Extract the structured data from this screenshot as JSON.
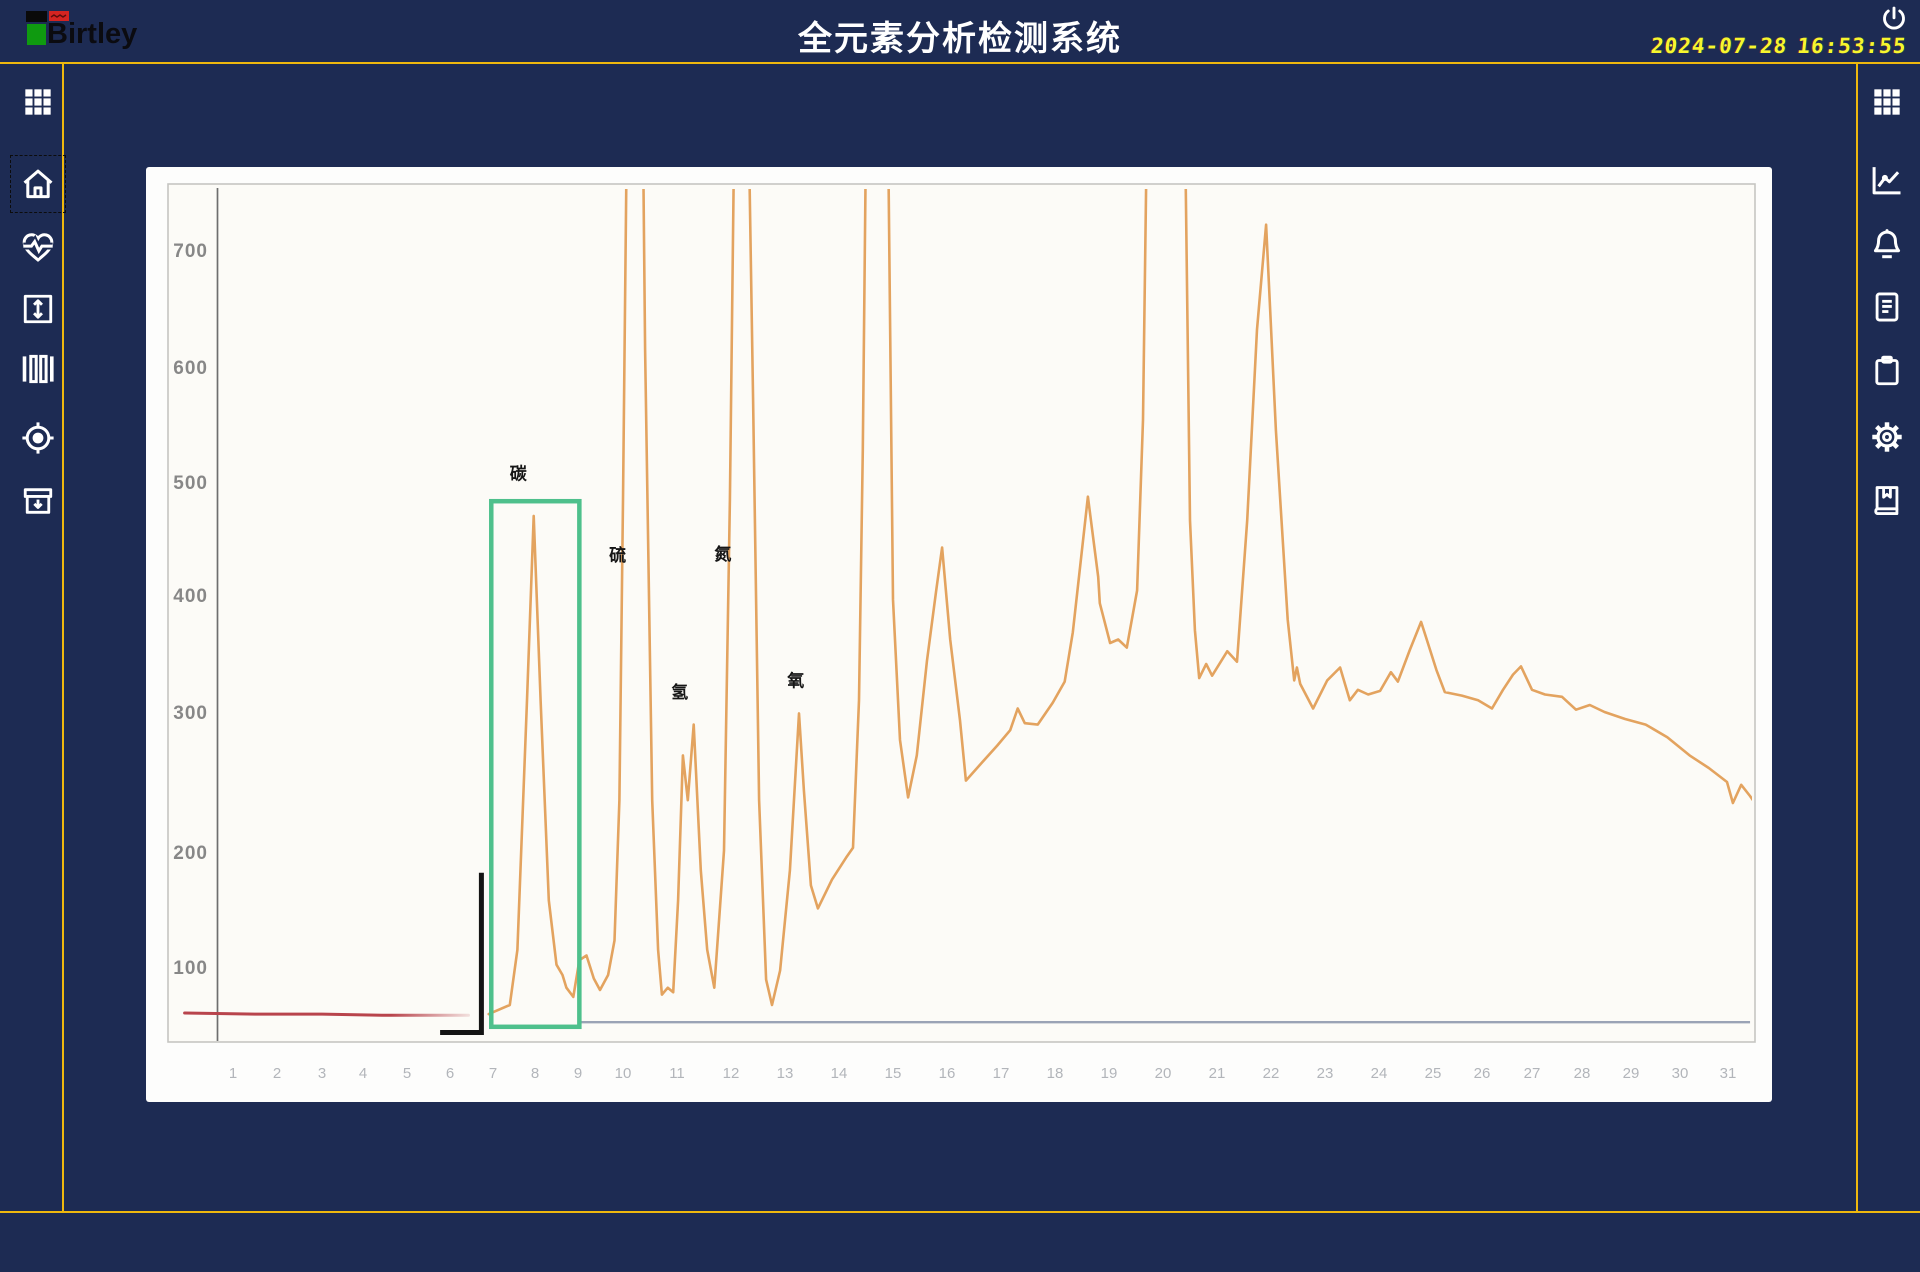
{
  "app": {
    "brand": "Birtley",
    "title": "全元素分析检测系统",
    "date": "2024-07-28",
    "time": "16:53:55"
  },
  "colors": {
    "background_navy": "#1d2b53",
    "frame_yellow": "#eeb80e",
    "datetime_yellow": "#f6f62e",
    "trace_orange": "#e3a35f",
    "baseline_red": "#b8444c",
    "baseline_rule_gray": "#9aa3b5",
    "marker_green": "#4ec08c",
    "annotation_black": "#141414",
    "panel_white": "#fdfdfc",
    "scan_paper": "#fcfbf7"
  },
  "sidebar_left": {
    "icons": [
      "apps-grid-icon",
      "home-icon",
      "heartbeat-icon",
      "expand-vertical-icon",
      "barcode-icon",
      "target-icon",
      "archive-down-icon"
    ],
    "active_item": "home"
  },
  "sidebar_right": {
    "icons": [
      "apps-grid-icon",
      "trend-chart-icon",
      "bell-icon",
      "document-icon",
      "clipboard-icon",
      "gear-icon",
      "book-icon"
    ]
  },
  "header_icons": [
    "power-icon"
  ],
  "chart_data": {
    "type": "line",
    "title": "",
    "xlabel": "",
    "ylabel": "",
    "x_ticks": [
      "1",
      "2",
      "3",
      "4",
      "5",
      "6",
      "7",
      "8",
      "9",
      "10",
      "11",
      "12",
      "13",
      "14",
      "15",
      "16",
      "17",
      "18",
      "19",
      "20",
      "21",
      "22",
      "23",
      "24",
      "25",
      "26",
      "27",
      "28",
      "29",
      "30",
      "31"
    ],
    "y_ticks": [
      "100",
      "200",
      "300",
      "400",
      "500",
      "600",
      "700"
    ],
    "xlim": [
      0,
      31.6
    ],
    "ylim": [
      0,
      760
    ],
    "grid": false,
    "legend": "none",
    "clipped_peak_value": 800,
    "series": [
      {
        "name": "baseline-red",
        "color": "#b8444c",
        "points": [
          [
            -0.1,
            60
          ],
          [
            1.5,
            59
          ],
          [
            3,
            59
          ],
          [
            4.5,
            58
          ],
          [
            5.5,
            58
          ],
          [
            6.43,
            58
          ]
        ]
      },
      {
        "name": "signal",
        "color": "#e3a35f",
        "points": [
          [
            6.9,
            59
          ],
          [
            7.4,
            67
          ],
          [
            7.58,
            115
          ],
          [
            7.81,
            310
          ],
          [
            7.97,
            470
          ],
          [
            8.13,
            310
          ],
          [
            8.32,
            158
          ],
          [
            8.5,
            102
          ],
          [
            8.64,
            93
          ],
          [
            8.73,
            82
          ],
          [
            8.89,
            74
          ],
          [
            9.03,
            106
          ],
          [
            9.19,
            110
          ],
          [
            9.35,
            90
          ],
          [
            9.49,
            80
          ],
          [
            9.67,
            93
          ],
          [
            9.81,
            123
          ],
          [
            9.92,
            237
          ],
          [
            10.0,
            484
          ],
          [
            10.07,
            800
          ],
          [
            10.37,
            800
          ],
          [
            10.41,
            615
          ],
          [
            10.54,
            237
          ],
          [
            10.65,
            115
          ],
          [
            10.72,
            76
          ],
          [
            10.83,
            82
          ],
          [
            10.93,
            78
          ],
          [
            11.02,
            158
          ],
          [
            11.11,
            269
          ],
          [
            11.2,
            237
          ],
          [
            11.31,
            291
          ],
          [
            11.44,
            184
          ],
          [
            11.56,
            115
          ],
          [
            11.69,
            82
          ],
          [
            11.87,
            201
          ],
          [
            11.98,
            484
          ],
          [
            12.06,
            800
          ],
          [
            12.33,
            800
          ],
          [
            12.41,
            571
          ],
          [
            12.52,
            237
          ],
          [
            12.65,
            89
          ],
          [
            12.76,
            67
          ],
          [
            12.91,
            97
          ],
          [
            13.09,
            184
          ],
          [
            13.26,
            299
          ],
          [
            13.35,
            244
          ],
          [
            13.48,
            171
          ],
          [
            13.61,
            151
          ],
          [
            13.87,
            176
          ],
          [
            14.13,
            195
          ],
          [
            14.26,
            203
          ],
          [
            14.37,
            310
          ],
          [
            14.44,
            528
          ],
          [
            14.5,
            800
          ],
          [
            14.91,
            800
          ],
          [
            15.0,
            396
          ],
          [
            15.13,
            280
          ],
          [
            15.28,
            239
          ],
          [
            15.44,
            269
          ],
          [
            15.63,
            344
          ],
          [
            15.8,
            404
          ],
          [
            15.91,
            442
          ],
          [
            16.06,
            362
          ],
          [
            16.24,
            294
          ],
          [
            16.35,
            251
          ],
          [
            16.65,
            264
          ],
          [
            16.93,
            276
          ],
          [
            17.17,
            287
          ],
          [
            17.31,
            303
          ],
          [
            17.44,
            292
          ],
          [
            17.68,
            291
          ],
          [
            17.96,
            308
          ],
          [
            18.18,
            326
          ],
          [
            18.33,
            368
          ],
          [
            18.61,
            487
          ],
          [
            18.8,
            416
          ],
          [
            18.83,
            393
          ],
          [
            19.02,
            359
          ],
          [
            19.17,
            362
          ],
          [
            19.33,
            355
          ],
          [
            19.52,
            404
          ],
          [
            19.63,
            554
          ],
          [
            19.7,
            800
          ],
          [
            20.41,
            800
          ],
          [
            20.5,
            466
          ],
          [
            20.59,
            370
          ],
          [
            20.67,
            329
          ],
          [
            20.8,
            341
          ],
          [
            20.91,
            331
          ],
          [
            21.19,
            352
          ],
          [
            21.37,
            343
          ],
          [
            21.56,
            466
          ],
          [
            21.74,
            632
          ],
          [
            21.91,
            722
          ],
          [
            22.09,
            545
          ],
          [
            22.31,
            379
          ],
          [
            22.43,
            327
          ],
          [
            22.48,
            338
          ],
          [
            22.54,
            324
          ],
          [
            22.78,
            303
          ],
          [
            23.04,
            327
          ],
          [
            23.28,
            338
          ],
          [
            23.46,
            310
          ],
          [
            23.61,
            319
          ],
          [
            23.8,
            315
          ],
          [
            24.02,
            318
          ],
          [
            24.22,
            334
          ],
          [
            24.35,
            326
          ],
          [
            24.57,
            353
          ],
          [
            24.78,
            377
          ],
          [
            24.89,
            361
          ],
          [
            25.07,
            336
          ],
          [
            25.24,
            317
          ],
          [
            25.59,
            314
          ],
          [
            25.92,
            310
          ],
          [
            26.2,
            303
          ],
          [
            26.42,
            319
          ],
          [
            26.62,
            332
          ],
          [
            26.78,
            339
          ],
          [
            27.0,
            319
          ],
          [
            27.26,
            315
          ],
          [
            27.6,
            313
          ],
          [
            27.88,
            302
          ],
          [
            28.16,
            306
          ],
          [
            28.46,
            300
          ],
          [
            28.88,
            295
          ],
          [
            29.3,
            291
          ],
          [
            29.74,
            282
          ],
          [
            30.2,
            269
          ],
          [
            30.6,
            260
          ],
          [
            30.98,
            250
          ],
          [
            31.1,
            235
          ],
          [
            31.27,
            248
          ],
          [
            31.45,
            240
          ],
          [
            31.59,
            233
          ]
        ]
      }
    ],
    "annotations": {
      "element_labels": [
        {
          "label": "碳",
          "u": 7.6,
          "v": 502
        },
        {
          "label": "硫",
          "u": 9.88,
          "v": 430
        },
        {
          "label": "氢",
          "u": 11.05,
          "v": 312
        },
        {
          "label": "氮",
          "u": 11.85,
          "v": 431
        },
        {
          "label": "氧",
          "u": 13.2,
          "v": 322
        }
      ],
      "carbon_box": {
        "u1": 6.96,
        "u2": 9.03,
        "v1": 48,
        "v2": 483,
        "color": "#4ec08c"
      },
      "bracket": {
        "u": 6.73,
        "v_top": 182,
        "v_bottom": 43,
        "u_foot": 5.77,
        "color": "#141414"
      },
      "baseline_rule": {
        "u1": 9.03,
        "u2": 31.45,
        "v": 52,
        "color": "#9aa3b5"
      }
    }
  }
}
